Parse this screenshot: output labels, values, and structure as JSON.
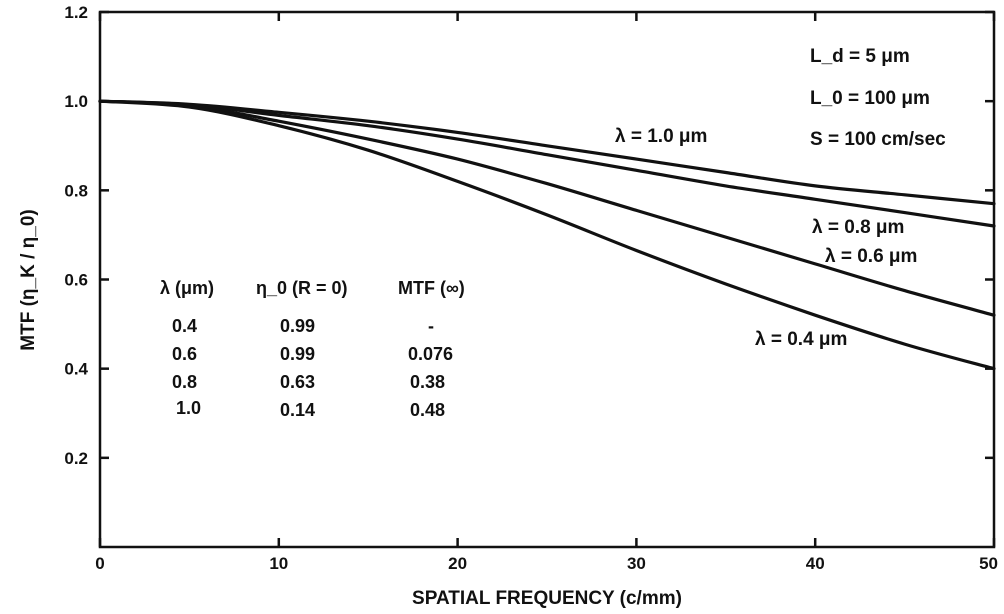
{
  "chart_data": {
    "type": "line",
    "title": "",
    "xlabel": "SPATIAL FREQUENCY (c/mm)",
    "ylabel": "MTF (η_K / η_0)",
    "xlim": [
      0,
      50
    ],
    "ylim": [
      0,
      1.2
    ],
    "x_ticks": [
      "0",
      "10",
      "20",
      "30",
      "40",
      "50"
    ],
    "y_ticks": [
      "0.2",
      "0.4",
      "0.6",
      "0.8",
      "1.0",
      "1.2"
    ],
    "x": [
      0,
      5,
      10,
      15,
      20,
      25,
      30,
      35,
      40,
      45,
      50
    ],
    "series": [
      {
        "name": "λ = 1.0 μm",
        "values": [
          1.0,
          0.993,
          0.975,
          0.955,
          0.93,
          0.9,
          0.87,
          0.84,
          0.81,
          0.79,
          0.77
        ]
      },
      {
        "name": "λ = 0.8 μm",
        "values": [
          1.0,
          0.992,
          0.968,
          0.945,
          0.915,
          0.88,
          0.845,
          0.81,
          0.78,
          0.75,
          0.72
        ]
      },
      {
        "name": "λ = 0.6 μm",
        "values": [
          1.0,
          0.99,
          0.955,
          0.915,
          0.87,
          0.815,
          0.755,
          0.695,
          0.635,
          0.575,
          0.52
        ]
      },
      {
        "name": "λ = 0.4 μm",
        "values": [
          1.0,
          0.987,
          0.945,
          0.89,
          0.82,
          0.745,
          0.665,
          0.59,
          0.52,
          0.455,
          0.4
        ]
      }
    ],
    "curve_labels": [
      "λ = 1.0 μm",
      "λ = 0.8 μm",
      "λ = 0.6 μm",
      "λ = 0.4 μm"
    ],
    "parameters": [
      "L_d = 5 μm",
      "L_0 = 100 μm",
      "S = 100 cm/sec"
    ],
    "legend_placement": "top-right",
    "grid": false
  },
  "table": {
    "headers": [
      "λ (μm)",
      "η_0 (R = 0)",
      "MTF (∞)"
    ],
    "rows": [
      [
        "0.4",
        "0.99",
        "-"
      ],
      [
        "0.6",
        "0.99",
        "0.076"
      ],
      [
        "0.8",
        "0.63",
        "0.38"
      ],
      [
        "1.0",
        "0.14",
        "0.48"
      ]
    ]
  }
}
